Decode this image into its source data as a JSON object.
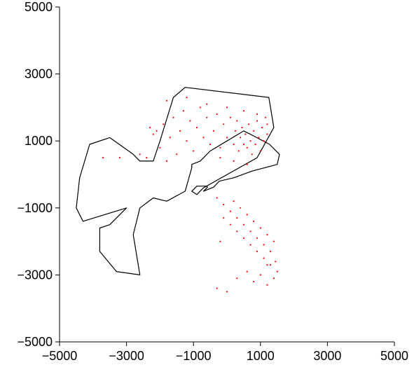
{
  "chart_data": {
    "type": "scatter",
    "title": "",
    "xlabel": "",
    "ylabel": "",
    "xlim": [
      -5000,
      5000
    ],
    "ylim": [
      -5000,
      5000
    ],
    "x_ticks": [
      -5000,
      -3000,
      -1000,
      1000,
      3000,
      5000
    ],
    "y_ticks": [
      -5000,
      -3000,
      -1000,
      1000,
      3000,
      5000
    ],
    "x_tick_labels": [
      "−5000",
      "−3000",
      "−1000",
      "1000",
      "3000",
      "5000"
    ],
    "y_tick_labels": [
      "−5000",
      "−3000",
      "−1000",
      "1000",
      "3000",
      "5000"
    ],
    "grid": false,
    "colors": {
      "points": "#ff0000",
      "outline": "#000000"
    },
    "outline": {
      "x": [
        -1250,
        1250,
        1400,
        900,
        -700,
        -900,
        -1050,
        -900,
        -600,
        -580,
        -700,
        -400,
        -230,
        200,
        750,
        1500,
        1570,
        1270,
        700,
        500,
        0,
        -500,
        -800,
        -1050,
        -1050,
        -1250,
        -1800,
        -2200,
        -2600,
        -2800,
        -2600,
        -3300,
        -3800,
        -3800,
        -3500,
        -3000,
        -4300,
        -4500,
        -4400,
        -4100,
        -3500,
        -2800,
        -2600,
        -2200,
        -2000,
        -1600
      ],
      "y": [
        2600,
        2300,
        1400,
        500,
        -400,
        -600,
        -500,
        -350,
        -350,
        -380,
        -500,
        -380,
        -200,
        -100,
        100,
        300,
        600,
        900,
        1200,
        1300,
        1000,
        700,
        400,
        300,
        200,
        -500,
        -800,
        -700,
        -1000,
        -1800,
        -3000,
        -2900,
        -2300,
        -1600,
        -1500,
        -1000,
        -1400,
        -1000,
        -100,
        900,
        1100,
        600,
        400,
        400,
        1000,
        2300
      ]
    },
    "series": [
      {
        "values": [
          [
            -3700,
            500
          ],
          [
            -3200,
            500
          ],
          [
            -2600,
            600
          ],
          [
            -2400,
            500
          ],
          [
            -2300,
            1400
          ],
          [
            -2200,
            1200
          ],
          [
            -2100,
            1300
          ],
          [
            -2000,
            800
          ],
          [
            -1900,
            1500
          ],
          [
            -1800,
            400
          ],
          [
            -1700,
            1100
          ],
          [
            -1600,
            1700
          ],
          [
            -1500,
            600
          ],
          [
            -1400,
            1300
          ],
          [
            -1300,
            1900
          ],
          [
            -1200,
            1000
          ],
          [
            -1100,
            1600
          ],
          [
            -1000,
            700
          ],
          [
            -900,
            1400
          ],
          [
            -800,
            2000
          ],
          [
            -700,
            1100
          ],
          [
            -600,
            1700
          ],
          [
            -500,
            900
          ],
          [
            -400,
            1300
          ],
          [
            -300,
            1800
          ],
          [
            -200,
            800
          ],
          [
            -100,
            1500
          ],
          [
            0,
            1100
          ],
          [
            100,
            1700
          ],
          [
            200,
            900
          ],
          [
            250,
            1300
          ],
          [
            300,
            1600
          ],
          [
            350,
            700
          ],
          [
            400,
            1100
          ],
          [
            450,
            1400
          ],
          [
            500,
            900
          ],
          [
            550,
            1200
          ],
          [
            600,
            800
          ],
          [
            650,
            1500
          ],
          [
            700,
            1000
          ],
          [
            750,
            600
          ],
          [
            800,
            1300
          ],
          [
            850,
            900
          ],
          [
            900,
            1600
          ],
          [
            950,
            1100
          ],
          [
            1000,
            700
          ],
          [
            1050,
            1400
          ],
          [
            1100,
            1000
          ],
          [
            1150,
            1700
          ],
          [
            1200,
            1200
          ],
          [
            -1800,
            2200
          ],
          [
            -1200,
            2300
          ],
          [
            -600,
            2100
          ],
          [
            0,
            2000
          ],
          [
            500,
            1900
          ],
          [
            900,
            1800
          ],
          [
            1200,
            1500
          ],
          [
            -200,
            500
          ],
          [
            200,
            400
          ],
          [
            600,
            300
          ],
          [
            -300,
            -700
          ],
          [
            -100,
            -900
          ],
          [
            100,
            -1100
          ],
          [
            300,
            -1300
          ],
          [
            500,
            -1500
          ],
          [
            700,
            -1700
          ],
          [
            900,
            -1900
          ],
          [
            1100,
            -2100
          ],
          [
            1300,
            -2300
          ],
          [
            1450,
            -2600
          ],
          [
            200,
            -800
          ],
          [
            400,
            -1000
          ],
          [
            600,
            -1200
          ],
          [
            800,
            -1400
          ],
          [
            1000,
            -1600
          ],
          [
            1200,
            -1800
          ],
          [
            1400,
            -2000
          ],
          [
            -100,
            -1300
          ],
          [
            100,
            -1500
          ],
          [
            300,
            -1700
          ],
          [
            500,
            -1900
          ],
          [
            700,
            -2100
          ],
          [
            900,
            -2300
          ],
          [
            1100,
            -2500
          ],
          [
            1300,
            -2700
          ],
          [
            1500,
            -2900
          ],
          [
            -200,
            -2000
          ],
          [
            -300,
            -3400
          ],
          [
            0,
            -3500
          ],
          [
            300,
            -3100
          ],
          [
            600,
            -2900
          ],
          [
            800,
            -3200
          ],
          [
            1000,
            -3000
          ],
          [
            1200,
            -3300
          ],
          [
            1400,
            -3100
          ],
          [
            1200,
            -2700
          ]
        ]
      }
    ]
  }
}
